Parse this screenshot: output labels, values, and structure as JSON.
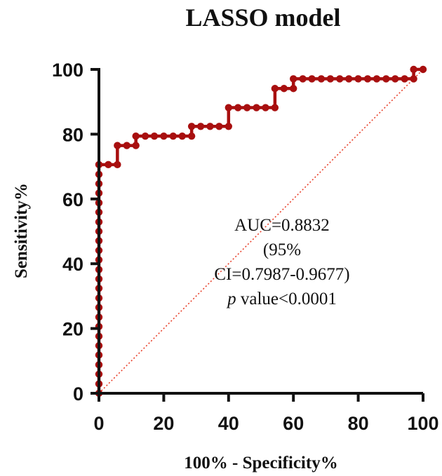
{
  "chart_data": {
    "type": "line",
    "title": "LASSO model",
    "xlabel": "100% - Specificity%",
    "ylabel": "Sensitivity%",
    "xlim": [
      0,
      100
    ],
    "ylim": [
      0,
      100
    ],
    "x_ticks": [
      "0",
      "20",
      "40",
      "60",
      "80",
      "100"
    ],
    "y_ticks": [
      "0",
      "20",
      "40",
      "60",
      "80",
      "100"
    ],
    "grid": false,
    "series": [
      {
        "color": "#a80f0f",
        "x": [
          0,
          0,
          0,
          0,
          0,
          0,
          0,
          0,
          0,
          0,
          0,
          0,
          0,
          0,
          0,
          0,
          0,
          0,
          0,
          0,
          0,
          0,
          0,
          0,
          0,
          2.9,
          5.7,
          5.7,
          8.6,
          11.4,
          11.4,
          14.3,
          17.1,
          20,
          22.9,
          25.7,
          28.6,
          28.6,
          31.4,
          34.3,
          37.1,
          40,
          40,
          42.9,
          45.7,
          48.6,
          51.4,
          54.3,
          54.3,
          57.1,
          60,
          60,
          62.9,
          65.7,
          68.6,
          71.4,
          74.3,
          77.1,
          80,
          82.9,
          85.7,
          88.6,
          91.4,
          94.3,
          97.1,
          97.1,
          100
        ],
        "y": [
          0,
          2.9,
          5.9,
          8.8,
          11.8,
          14.7,
          17.6,
          20.6,
          23.5,
          26.5,
          29.4,
          32.4,
          35.3,
          38.2,
          41.2,
          44.1,
          47.1,
          50,
          52.9,
          55.9,
          58.8,
          61.8,
          64.7,
          67.6,
          70.6,
          70.6,
          70.6,
          76.5,
          76.5,
          76.5,
          79.4,
          79.4,
          79.4,
          79.4,
          79.4,
          79.4,
          79.4,
          82.4,
          82.4,
          82.4,
          82.4,
          82.4,
          88.2,
          88.2,
          88.2,
          88.2,
          88.2,
          88.2,
          94.1,
          94.1,
          94.1,
          97.1,
          97.1,
          97.1,
          97.1,
          97.1,
          97.1,
          97.1,
          97.1,
          97.1,
          97.1,
          97.1,
          97.1,
          97.1,
          97.1,
          100,
          100
        ]
      },
      {
        "color": "#e8402a",
        "style": "dotted",
        "x": [
          0,
          100
        ],
        "y": [
          0,
          100
        ]
      }
    ],
    "annotations": {
      "line1": "AUC=0.8832",
      "line2": "(95%",
      "line3": "CI=0.7987-0.9677)",
      "line4_italic": "p",
      "line4_rest": " value<0.0001"
    }
  }
}
